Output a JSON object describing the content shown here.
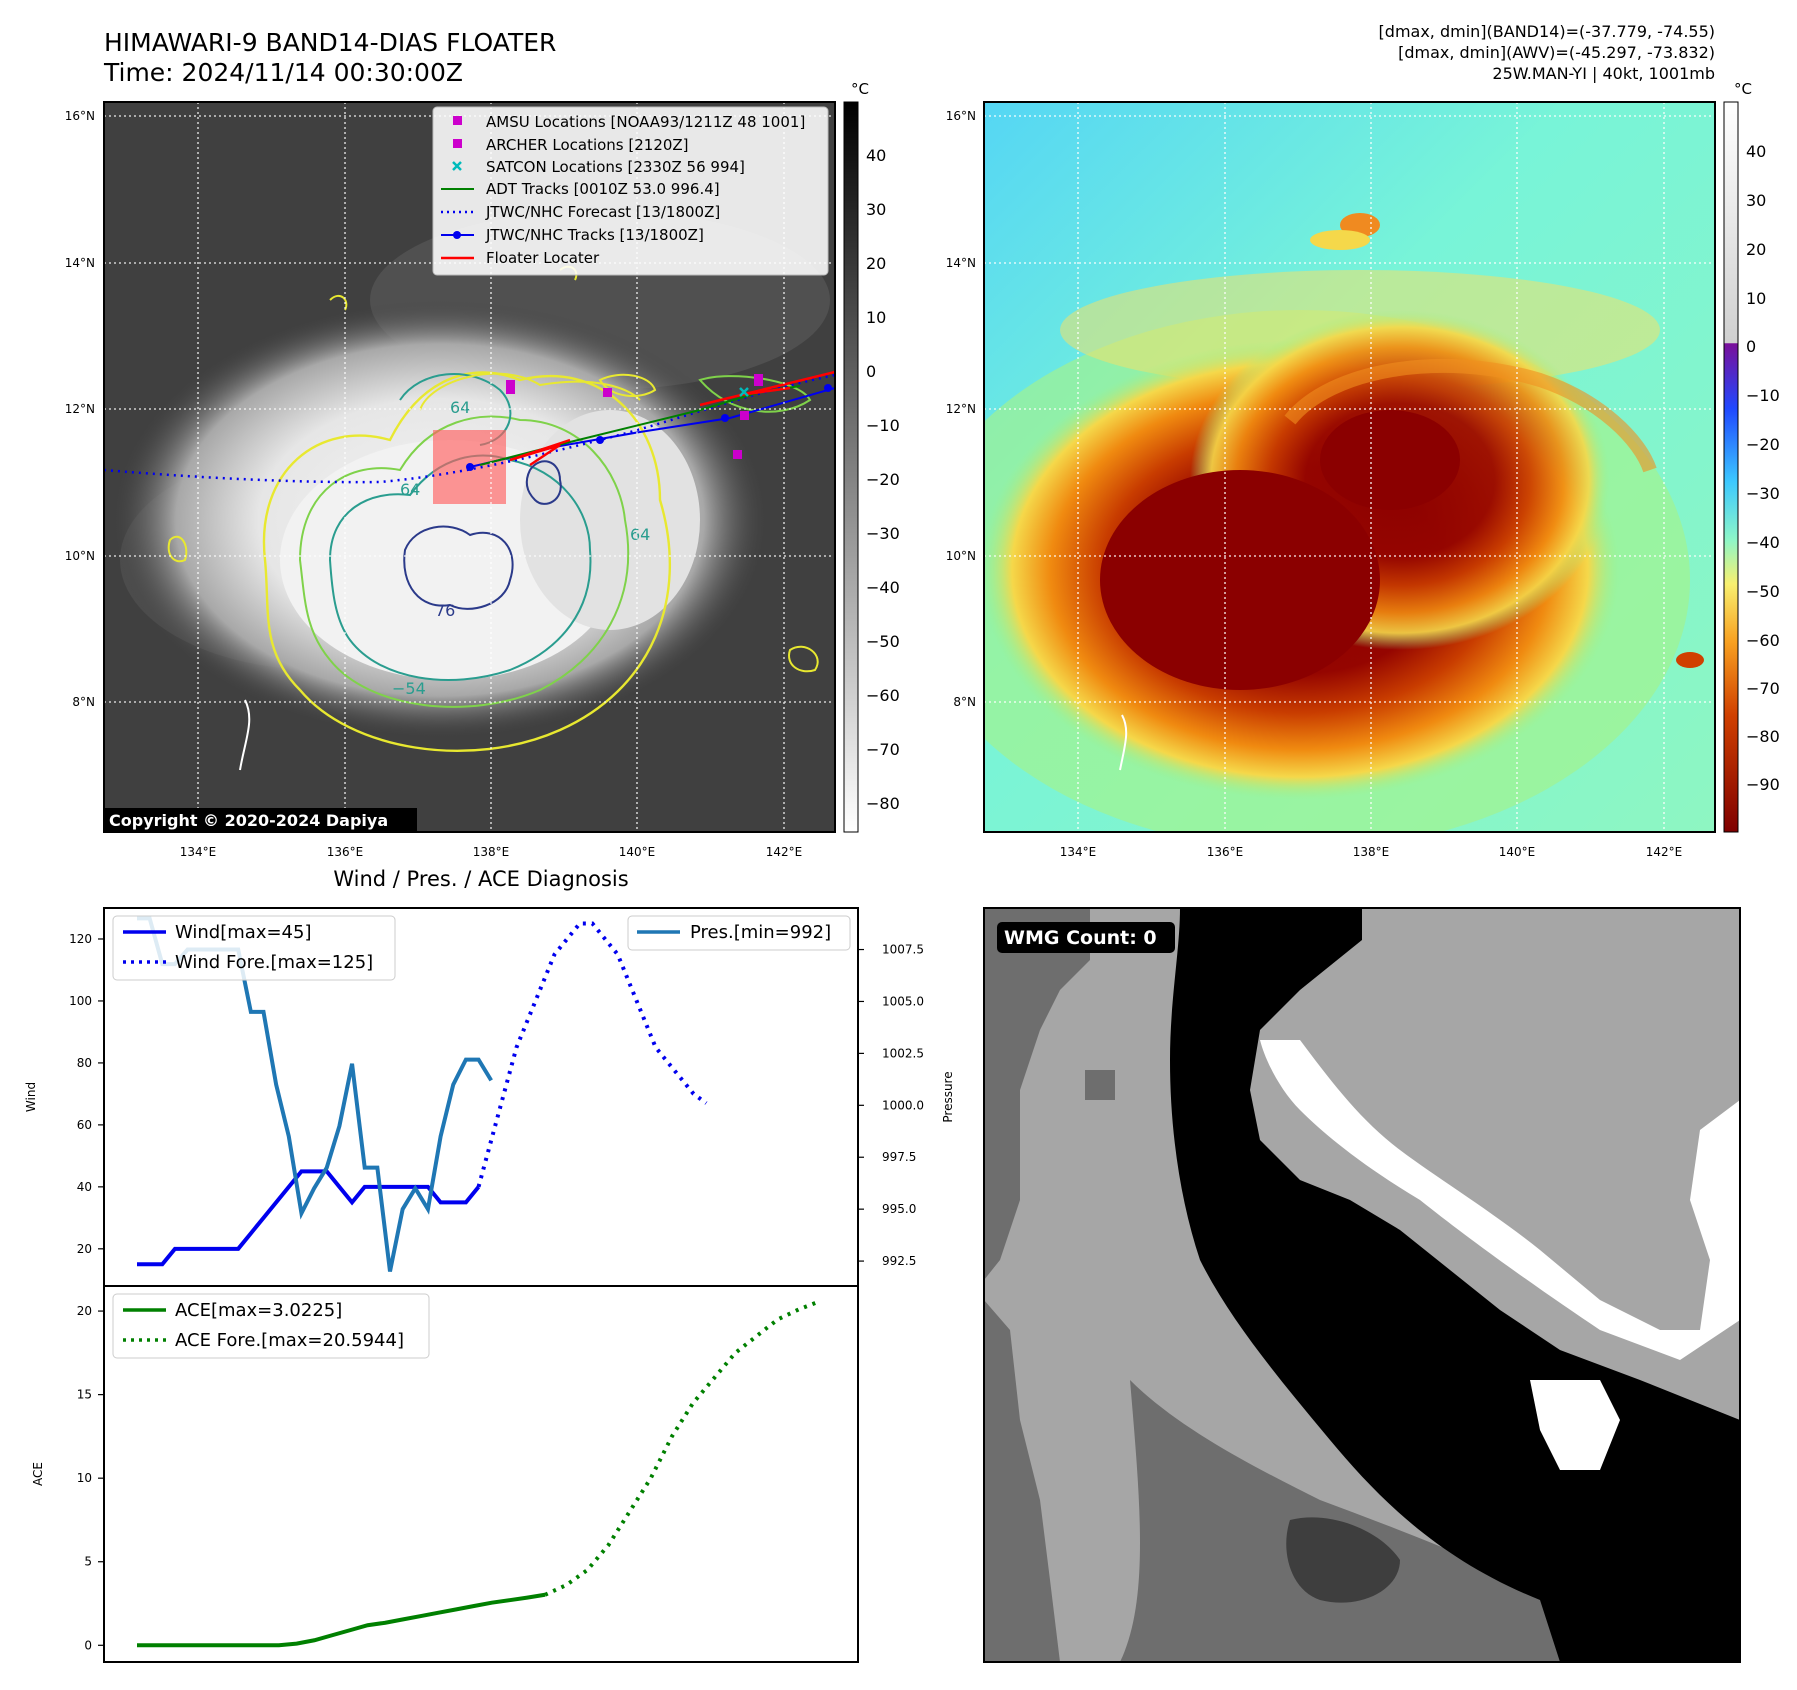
{
  "header": {
    "title_line1": "HIMAWARI-9 BAND14-DIAS FLOATER",
    "title_line2": "Time: 2024/11/14 00:30:00Z",
    "right_line1": "[dmax, dmin](BAND14)=(-37.779, -74.55)",
    "right_line2": "[dmax, dmin](AWV)=(-45.297, -73.832)",
    "right_line3": "25W.MAN-YI | 40kt, 1001mb"
  },
  "colors": {
    "wind": "#0000ee",
    "pressure": "#1f77b4",
    "ace": "#008000",
    "floater": "#ff0000",
    "amsu": "#cc00cc",
    "satcon": "#00bbbb",
    "adt": "#008000"
  },
  "map": {
    "lat_labels": [
      "16°N",
      "14°N",
      "12°N",
      "10°N",
      "8°N"
    ],
    "lon_labels": [
      "134°E",
      "136°E",
      "138°E",
      "140°E",
      "142°E"
    ],
    "copyright": "Copyright © 2020-2024 Dapiya",
    "colorbar_unit": "°C",
    "ir_ticks": [
      "40",
      "30",
      "20",
      "10",
      "0",
      "−10",
      "−20",
      "−30",
      "−40",
      "−50",
      "−60",
      "−70",
      "−80"
    ],
    "awv_ticks": [
      "40",
      "30",
      "20",
      "10",
      "0",
      "−10",
      "−20",
      "−30",
      "−40",
      "−50",
      "−60",
      "−70",
      "−80",
      "−90"
    ],
    "contour_labels": [
      "64",
      "64",
      "64",
      "76",
      "−54"
    ],
    "legend": [
      {
        "label": "AMSU Locations [NOAA93/1211Z 48 1001]",
        "kind": "square",
        "icon": "magenta-square"
      },
      {
        "label": "ARCHER Locations [2120Z]",
        "kind": "square",
        "icon": "magenta-square"
      },
      {
        "label": "SATCON Locations [2330Z 56 994]",
        "kind": "cross",
        "icon": "cyan-cross"
      },
      {
        "label": "ADT Tracks [0010Z 53.0 996.4]",
        "kind": "line",
        "icon": "green-line"
      },
      {
        "label": "JTWC/NHC Forecast [13/1800Z]",
        "kind": "dotted",
        "icon": "blue-dotted-line"
      },
      {
        "label": "JTWC/NHC Tracks [13/1800Z]",
        "kind": "dotline",
        "icon": "blue-line-marker"
      },
      {
        "label": "Floater Locater",
        "kind": "redline",
        "icon": "red-line"
      }
    ]
  },
  "wmg": {
    "label": "WMG Count: 0"
  },
  "chart_data": [
    {
      "type": "line",
      "title": "Wind / Pres. / ACE Diagnosis",
      "ylabel": "Wind",
      "ylabel_right": "Pressure",
      "ylim": [
        8,
        130
      ],
      "ylim_right": [
        991.3,
        1009.5
      ],
      "yticks": [
        20,
        40,
        60,
        80,
        100,
        120
      ],
      "yticks_right": [
        "1007.5",
        "1005.0",
        "1002.5",
        "1000.0",
        "997.5",
        "995.0",
        "992.5"
      ],
      "legend": [
        "Wind[max=45]",
        "Wind Fore.[max=125]"
      ],
      "legend_right": [
        "Pres.[min=992]"
      ],
      "series": [
        {
          "name": "Wind[max=45]",
          "style": "solid",
          "values": [
            15,
            15,
            15,
            20,
            20,
            20,
            20,
            20,
            20,
            25,
            30,
            35,
            40,
            45,
            45,
            45,
            40,
            35,
            40,
            40,
            40,
            40,
            40,
            40,
            35,
            35,
            35,
            40
          ]
        },
        {
          "name": "Wind Fore.[max=125]",
          "style": "dotted",
          "values": [
            40,
            55,
            70,
            85,
            95,
            105,
            115,
            120,
            125,
            125,
            120,
            115,
            105,
            95,
            85,
            80,
            75,
            70,
            67
          ]
        },
        {
          "name": "Pres.[min=992]",
          "axis": "right",
          "values": [
            1009,
            1009,
            1006.8,
            1006.8,
            1007.5,
            1007.5,
            1007.5,
            1007.5,
            1007.5,
            1004.5,
            1004.5,
            1001,
            998.5,
            994.8,
            996,
            997,
            999,
            1002,
            997,
            997,
            992,
            995,
            996,
            995,
            998.5,
            1001,
            1002.2,
            1002.2,
            1001.2
          ]
        }
      ]
    },
    {
      "type": "line",
      "ylabel": "ACE",
      "ylim": [
        -1,
        21.5
      ],
      "yticks": [
        0,
        5,
        10,
        15,
        20
      ],
      "legend": [
        "ACE[max=3.0225]",
        "ACE Fore.[max=20.5944]"
      ],
      "series": [
        {
          "name": "ACE[max=3.0225]",
          "style": "solid",
          "values": [
            0,
            0,
            0,
            0,
            0,
            0,
            0,
            0,
            0,
            0.1,
            0.3,
            0.6,
            0.9,
            1.2,
            1.35,
            1.55,
            1.75,
            1.95,
            2.15,
            2.35,
            2.55,
            2.7,
            2.85,
            3.0225
          ]
        },
        {
          "name": "ACE Fore.[max=20.5944]",
          "style": "dotted",
          "values": [
            3.0225,
            3.6,
            4.5,
            6,
            8,
            10,
            12.5,
            14.5,
            16,
            17.5,
            18.5,
            19.5,
            20.1,
            20.5944
          ]
        }
      ]
    }
  ]
}
